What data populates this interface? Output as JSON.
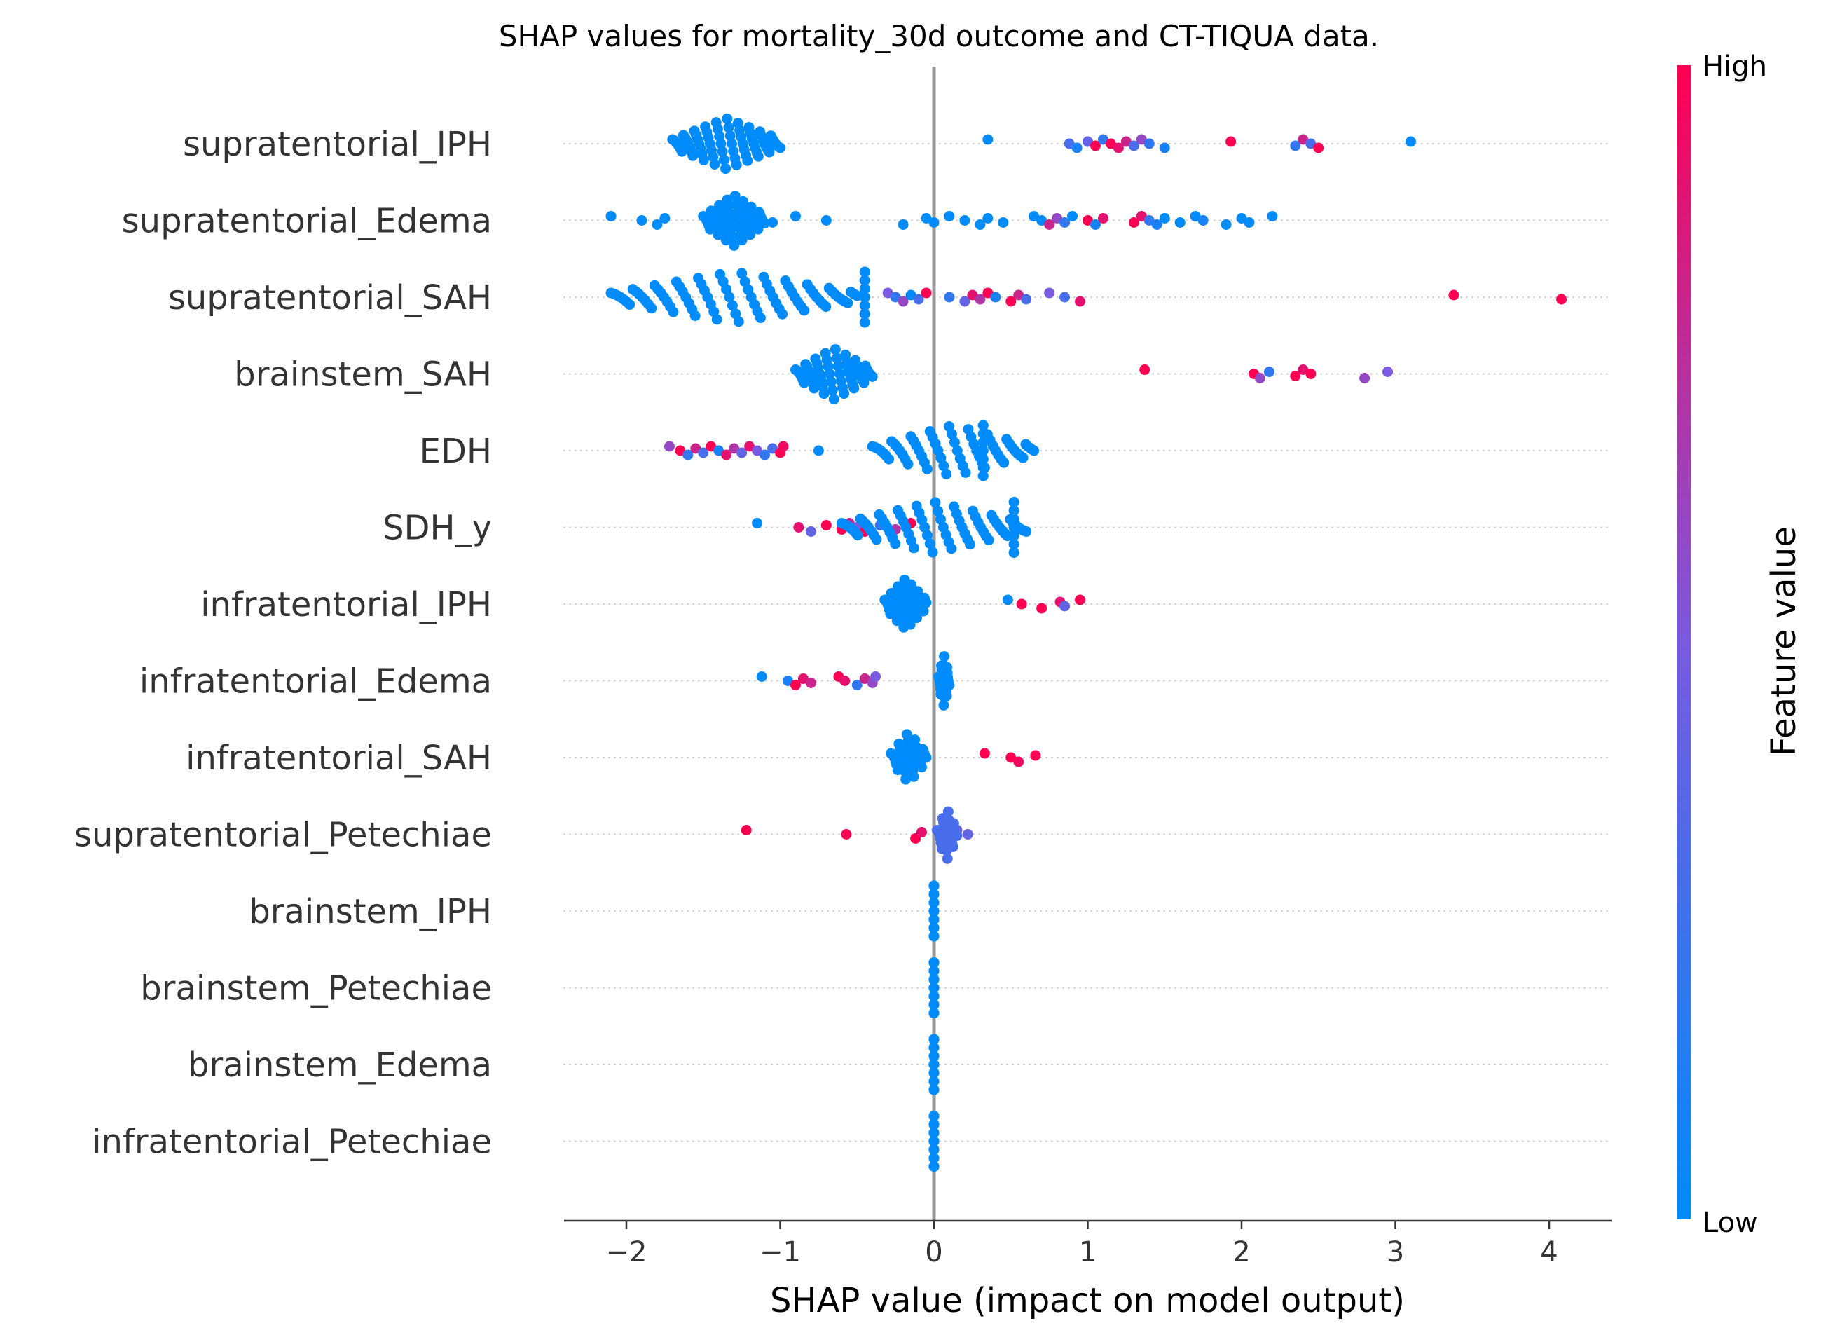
{
  "chart_data": {
    "type": "scatter",
    "subtype": "shap-beeswarm",
    "title": "SHAP values for mortality_30d outcome and CT-TIQUA data.",
    "xlabel": "SHAP value (impact on model output)",
    "ylabel": "",
    "xlim": [
      -2.4,
      4.4
    ],
    "xticks": [
      -2,
      -1,
      0,
      1,
      2,
      3,
      4
    ],
    "xtick_labels": [
      "−2",
      "−1",
      "0",
      "1",
      "2",
      "3",
      "4"
    ],
    "grid": "dotted horizontal row guides",
    "colorbar": {
      "label": "Feature value",
      "high_label": "High",
      "low_label": "Low",
      "high_color": "#ff0052",
      "low_color": "#008bfb"
    },
    "zero_line_color": "#999999",
    "features": [
      {
        "name": "supratentorial_IPH",
        "clusters": [
          {
            "from": -1.7,
            "to": -1.0,
            "n": 70,
            "fv": 0
          }
        ],
        "points": [
          [
            0.35,
            0
          ],
          [
            0.88,
            0.3
          ],
          [
            0.93,
            0.1
          ],
          [
            1.0,
            0.4
          ],
          [
            1.05,
            1
          ],
          [
            1.1,
            0.2
          ],
          [
            1.15,
            1
          ],
          [
            1.2,
            0.9
          ],
          [
            1.25,
            0.8
          ],
          [
            1.3,
            0.3
          ],
          [
            1.35,
            0.6
          ],
          [
            1.4,
            0.2
          ],
          [
            1.5,
            0.1
          ],
          [
            1.93,
            1
          ],
          [
            2.35,
            0.2
          ],
          [
            2.4,
            0.8
          ],
          [
            2.45,
            0.3
          ],
          [
            2.5,
            1
          ],
          [
            3.1,
            0
          ]
        ]
      },
      {
        "name": "supratentorial_Edema",
        "clusters": [
          {
            "from": -1.5,
            "to": -1.1,
            "n": 55,
            "fv": 0
          }
        ],
        "points": [
          [
            -2.1,
            0
          ],
          [
            -1.9,
            0
          ],
          [
            -1.8,
            0
          ],
          [
            -1.75,
            0
          ],
          [
            -1.05,
            0
          ],
          [
            -0.9,
            0
          ],
          [
            -0.7,
            0
          ],
          [
            -0.2,
            0
          ],
          [
            -0.05,
            0
          ],
          [
            0.0,
            0
          ],
          [
            0.1,
            0
          ],
          [
            0.2,
            0
          ],
          [
            0.3,
            0
          ],
          [
            0.35,
            0
          ],
          [
            0.45,
            0
          ],
          [
            0.65,
            0
          ],
          [
            0.7,
            0
          ],
          [
            0.75,
            0.8
          ],
          [
            0.8,
            0.6
          ],
          [
            0.85,
            0.2
          ],
          [
            0.9,
            0
          ],
          [
            1.0,
            1
          ],
          [
            1.05,
            0.1
          ],
          [
            1.1,
            0.9
          ],
          [
            1.3,
            1
          ],
          [
            1.35,
            0.9
          ],
          [
            1.4,
            0.2
          ],
          [
            1.45,
            0.1
          ],
          [
            1.5,
            0
          ],
          [
            1.6,
            0
          ],
          [
            1.7,
            0
          ],
          [
            1.75,
            0.1
          ],
          [
            1.9,
            0
          ],
          [
            2.0,
            0
          ],
          [
            2.05,
            0
          ],
          [
            2.2,
            0
          ]
        ]
      },
      {
        "name": "supratentorial_SAH",
        "clusters": [
          {
            "from": -2.1,
            "to": -0.5,
            "n": 80,
            "fv": 0
          },
          {
            "from": -0.45,
            "to": -0.45,
            "n": 14,
            "fv": 0
          }
        ],
        "points": [
          [
            -0.3,
            0.5
          ],
          [
            -0.25,
            0.2
          ],
          [
            -0.2,
            0.6
          ],
          [
            -0.15,
            0
          ],
          [
            -0.1,
            0.3
          ],
          [
            -0.05,
            1
          ],
          [
            0.1,
            0.2
          ],
          [
            0.2,
            0.4
          ],
          [
            0.25,
            0.9
          ],
          [
            0.3,
            0.7
          ],
          [
            0.35,
            1
          ],
          [
            0.4,
            0.1
          ],
          [
            0.5,
            1
          ],
          [
            0.55,
            0.8
          ],
          [
            0.6,
            0.3
          ],
          [
            0.75,
            0.5
          ],
          [
            0.85,
            0.3
          ],
          [
            0.95,
            0.9
          ],
          [
            3.38,
            1
          ],
          [
            4.08,
            1
          ]
        ]
      },
      {
        "name": "brainstem_SAH",
        "clusters": [
          {
            "from": -0.9,
            "to": -0.4,
            "n": 55,
            "fv": 0
          }
        ],
        "points": [
          [
            1.37,
            1
          ],
          [
            2.08,
            1
          ],
          [
            2.12,
            0.6
          ],
          [
            2.18,
            0.2
          ],
          [
            2.35,
            1
          ],
          [
            2.4,
            0.9
          ],
          [
            2.45,
            1
          ],
          [
            2.8,
            0.6
          ],
          [
            2.95,
            0.5
          ]
        ]
      },
      {
        "name": "EDH",
        "clusters": [
          {
            "from": -0.4,
            "to": 0.65,
            "n": 60,
            "fv": 0
          },
          {
            "from": 0.32,
            "to": 0.32,
            "n": 14,
            "fv": 0
          }
        ],
        "points": [
          [
            -1.72,
            0.6
          ],
          [
            -1.65,
            1
          ],
          [
            -1.6,
            0.2
          ],
          [
            -1.55,
            0.8
          ],
          [
            -1.5,
            0.3
          ],
          [
            -1.45,
            1
          ],
          [
            -1.4,
            0.1
          ],
          [
            -1.35,
            0.9
          ],
          [
            -1.3,
            0.7
          ],
          [
            -1.25,
            0.4
          ],
          [
            -1.2,
            0.9
          ],
          [
            -1.15,
            0.5
          ],
          [
            -1.1,
            0.2
          ],
          [
            -1.05,
            0.3
          ],
          [
            -1.0,
            1
          ],
          [
            -0.98,
            0.95
          ],
          [
            -0.75,
            0
          ]
        ]
      },
      {
        "name": "SDH_y",
        "clusters": [
          {
            "from": -0.6,
            "to": 0.6,
            "n": 70,
            "fv": 0
          },
          {
            "from": 0.52,
            "to": 0.52,
            "n": 14,
            "fv": 0
          }
        ],
        "points": [
          [
            -1.15,
            0
          ],
          [
            -0.88,
            0.9
          ],
          [
            -0.8,
            0.4
          ],
          [
            -0.7,
            1
          ],
          [
            -0.6,
            1
          ],
          [
            -0.55,
            0.8
          ],
          [
            -0.5,
            0.5
          ],
          [
            -0.45,
            1
          ],
          [
            -0.35,
            0.2
          ],
          [
            -0.25,
            0.7
          ],
          [
            -0.15,
            1
          ]
        ]
      },
      {
        "name": "infratentorial_IPH",
        "clusters": [
          {
            "from": -0.32,
            "to": -0.05,
            "n": 45,
            "fv": 0
          }
        ],
        "points": [
          [
            0.48,
            0
          ],
          [
            0.57,
            1
          ],
          [
            0.7,
            1
          ],
          [
            0.82,
            0.9
          ],
          [
            0.85,
            0.4
          ],
          [
            0.95,
            1
          ]
        ]
      },
      {
        "name": "infratentorial_Edema",
        "clusters": [
          {
            "from": 0.03,
            "to": 0.1,
            "n": 28,
            "fv": 0
          }
        ],
        "points": [
          [
            -1.12,
            0
          ],
          [
            -0.95,
            0.1
          ],
          [
            -0.9,
            1
          ],
          [
            -0.85,
            0.9
          ],
          [
            -0.8,
            0.8
          ],
          [
            -0.62,
            1
          ],
          [
            -0.58,
            0.9
          ],
          [
            -0.5,
            0.2
          ],
          [
            -0.45,
            0.8
          ],
          [
            -0.4,
            0.6
          ],
          [
            -0.38,
            0.5
          ]
        ]
      },
      {
        "name": "infratentorial_SAH",
        "clusters": [
          {
            "from": -0.28,
            "to": -0.05,
            "n": 32,
            "fv": 0
          }
        ],
        "points": [
          [
            0.33,
            1
          ],
          [
            0.5,
            1
          ],
          [
            0.55,
            0.95
          ],
          [
            0.66,
            1
          ]
        ]
      },
      {
        "name": "supratentorial_Petechiae",
        "clusters": [
          {
            "from": 0.02,
            "to": 0.15,
            "n": 26,
            "fv": 0.3
          }
        ],
        "points": [
          [
            -1.22,
            1
          ],
          [
            -0.57,
            1
          ],
          [
            -0.12,
            1
          ],
          [
            -0.08,
            0.9
          ],
          [
            0.08,
            0.7
          ],
          [
            0.15,
            0.5
          ],
          [
            0.22,
            0.4
          ]
        ]
      },
      {
        "name": "brainstem_IPH",
        "clusters": [
          {
            "from": 0.0,
            "to": 0.0,
            "n": 22,
            "fv": 0
          }
        ],
        "points": []
      },
      {
        "name": "brainstem_Petechiae",
        "clusters": [
          {
            "from": 0.0,
            "to": 0.0,
            "n": 22,
            "fv": 0
          }
        ],
        "points": []
      },
      {
        "name": "brainstem_Edema",
        "clusters": [
          {
            "from": 0.0,
            "to": 0.0,
            "n": 22,
            "fv": 0
          }
        ],
        "points": []
      },
      {
        "name": "infratentorial_Petechiae",
        "clusters": [
          {
            "from": 0.0,
            "to": 0.0,
            "n": 22,
            "fv": 0
          }
        ],
        "points": []
      }
    ]
  }
}
